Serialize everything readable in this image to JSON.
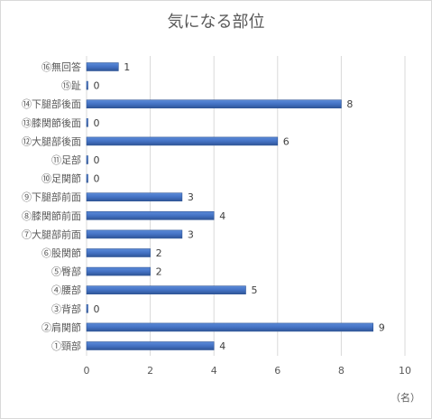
{
  "chart_data": {
    "type": "bar",
    "orientation": "horizontal",
    "title": "気になる部位",
    "unit_label": "（名）",
    "categories": [
      "①頸部",
      "②肩関節",
      "③背部",
      "④腰部",
      "⑤臀部",
      "⑥股関節",
      "⑦大腿部前面",
      "⑧膝関節前面",
      "⑨下腿部前面",
      "⑩足関節",
      "⑪足部",
      "⑫大腿部後面",
      "⑬膝関節後面",
      "⑭下腿部後面",
      "⑮趾",
      "⑯無回答"
    ],
    "values": [
      4,
      9,
      0,
      5,
      2,
      2,
      3,
      4,
      3,
      0,
      0,
      6,
      0,
      8,
      0,
      1
    ],
    "xlim": [
      0,
      10
    ],
    "xticks": [
      0,
      2,
      4,
      6,
      8,
      10
    ],
    "grid": true,
    "bar_color": "#4472C4",
    "grid_color": "#d9d9d9"
  }
}
